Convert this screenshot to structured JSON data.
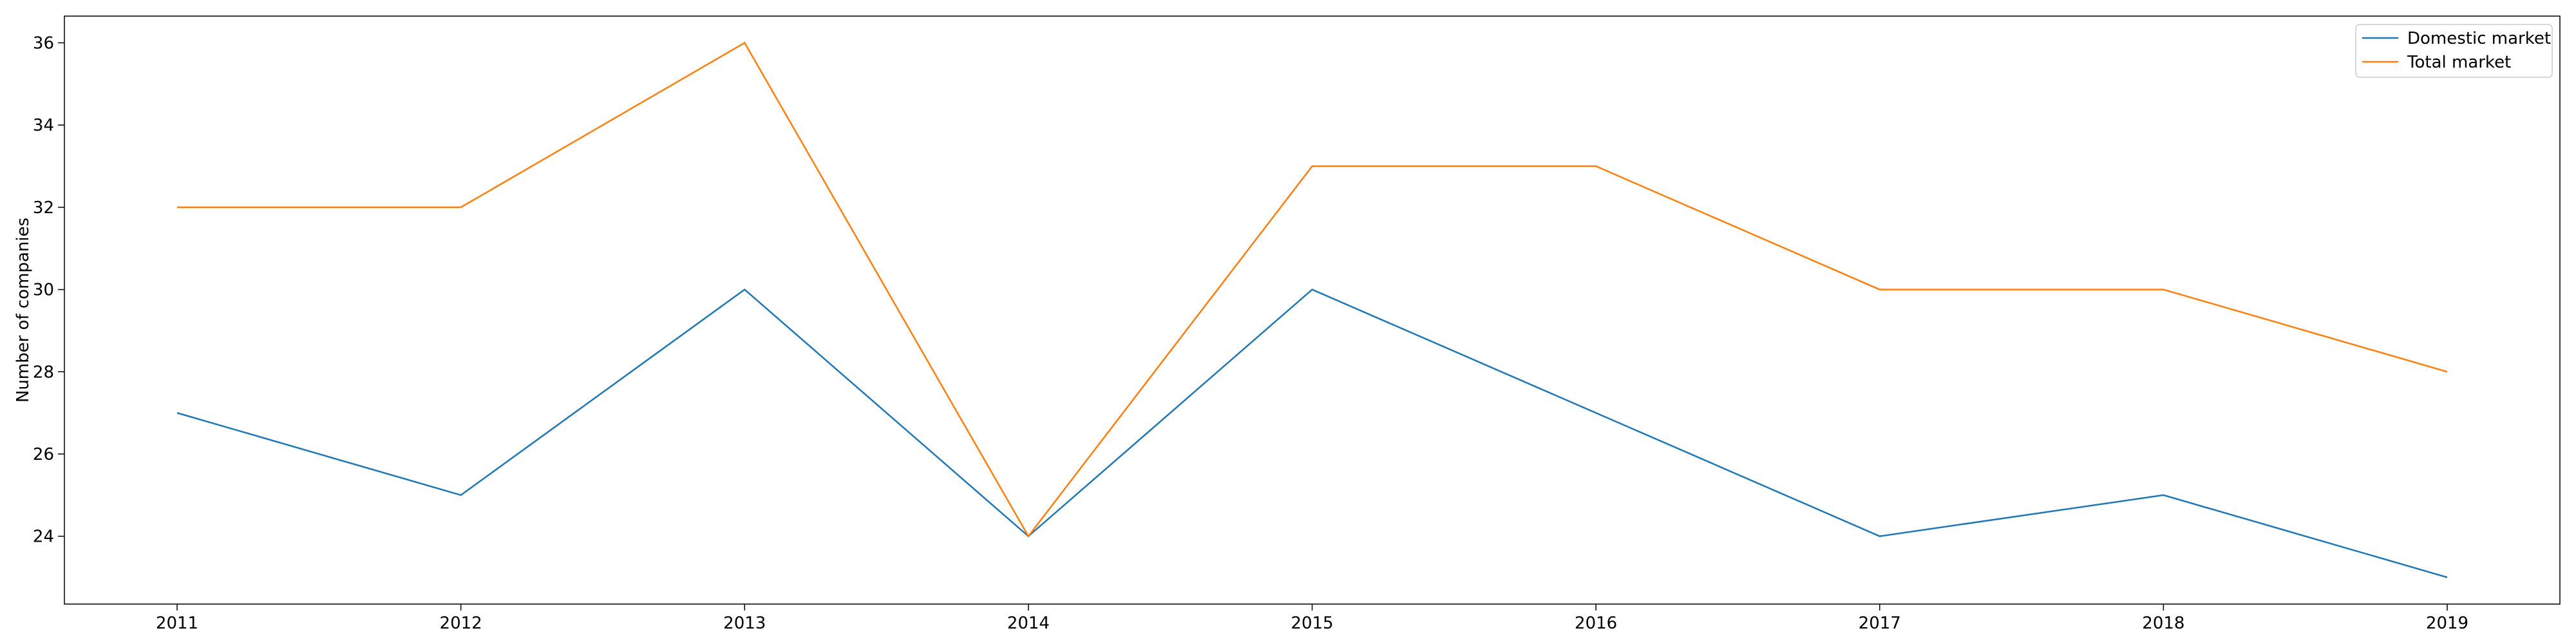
{
  "chart_data": {
    "type": "line",
    "title": "",
    "xlabel": "",
    "ylabel": "Number of companies",
    "categories": [
      "2011",
      "2012",
      "2013",
      "2014",
      "2015",
      "2016",
      "2017",
      "2018",
      "2019"
    ],
    "series": [
      {
        "name": "Domestic market",
        "color": "#1f77b4",
        "values": [
          27,
          25,
          30,
          24,
          30,
          27,
          24,
          25,
          23
        ]
      },
      {
        "name": "Total market",
        "color": "#ff7f0e",
        "values": [
          32,
          32,
          36,
          24,
          33,
          33,
          30,
          30,
          28
        ]
      }
    ],
    "ylim": [
      22.35,
      36.65
    ],
    "yticks": [
      24,
      26,
      28,
      30,
      32,
      34,
      36
    ],
    "grid": false,
    "legend_position": "top-right"
  }
}
